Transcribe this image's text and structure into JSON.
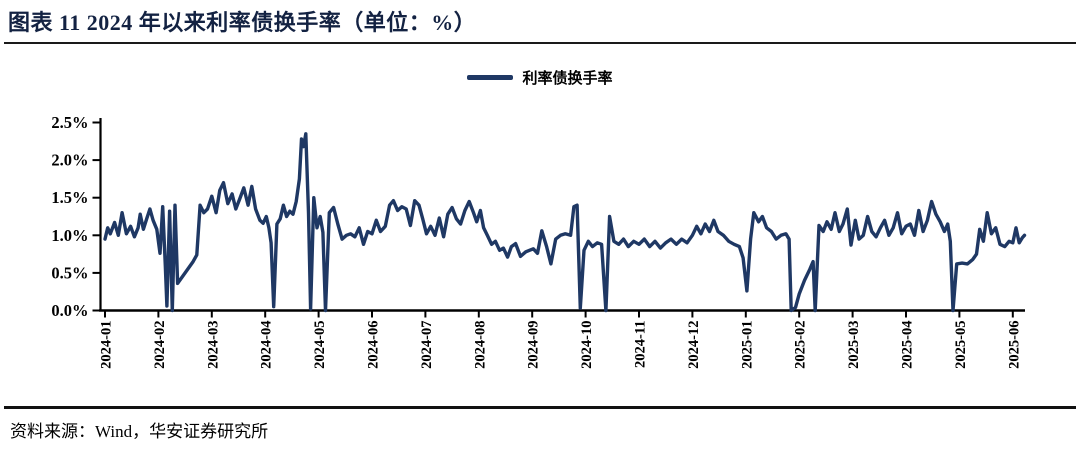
{
  "header": {
    "title": "图表 11 2024 年以来利率债换手率（单位：%）"
  },
  "footer": {
    "source": "资料来源：Wind，华安证券研究所"
  },
  "colors": {
    "line": "#1f3864",
    "axis": "#000000",
    "title": "#132242"
  },
  "chart_data": {
    "type": "line",
    "title": "2024 年以来利率债换手率（单位：%）",
    "xlabel": "",
    "ylabel": "",
    "legend_position": "top-center",
    "grid": false,
    "ylim": [
      0,
      2.5
    ],
    "y_tick_values": [
      0,
      0.5,
      1.0,
      1.5,
      2.0,
      2.5
    ],
    "y_tick_labels": [
      "0.0%",
      "0.5%",
      "1.0%",
      "1.5%",
      "2.0%",
      "2.5%"
    ],
    "x_categories": [
      "2024-01",
      "2024-02",
      "2024-03",
      "2024-04",
      "2024-05",
      "2024-06",
      "2024-07",
      "2024-08",
      "2024-09",
      "2024-10",
      "2024-11",
      "2024-12",
      "2025-01",
      "2025-02",
      "2025-03",
      "2025-04",
      "2025-05",
      "2025-06"
    ],
    "x_unit": "month_offset_from_2024_01",
    "series": [
      {
        "name": "利率债换手率",
        "color": "#1f3864",
        "points": [
          [
            0.0,
            0.95
          ],
          [
            0.05,
            1.1
          ],
          [
            0.1,
            1.02
          ],
          [
            0.18,
            1.17
          ],
          [
            0.25,
            1.0
          ],
          [
            0.32,
            1.3
          ],
          [
            0.4,
            1.02
          ],
          [
            0.48,
            1.12
          ],
          [
            0.55,
            0.98
          ],
          [
            0.62,
            1.1
          ],
          [
            0.66,
            1.28
          ],
          [
            0.72,
            1.08
          ],
          [
            0.78,
            1.22
          ],
          [
            0.84,
            1.35
          ],
          [
            0.9,
            1.2
          ],
          [
            0.97,
            1.08
          ],
          [
            1.03,
            0.76
          ],
          [
            1.08,
            1.38
          ],
          [
            1.13,
            0.6
          ],
          [
            1.16,
            0.06
          ],
          [
            1.21,
            1.32
          ],
          [
            1.26,
            0.0
          ],
          [
            1.31,
            1.4
          ],
          [
            1.36,
            0.36
          ],
          [
            1.5,
            0.5
          ],
          [
            1.65,
            0.65
          ],
          [
            1.72,
            0.74
          ],
          [
            1.78,
            1.4
          ],
          [
            1.85,
            1.3
          ],
          [
            1.92,
            1.35
          ],
          [
            2.0,
            1.52
          ],
          [
            2.08,
            1.3
          ],
          [
            2.15,
            1.6
          ],
          [
            2.22,
            1.7
          ],
          [
            2.3,
            1.42
          ],
          [
            2.38,
            1.55
          ],
          [
            2.45,
            1.35
          ],
          [
            2.52,
            1.48
          ],
          [
            2.6,
            1.63
          ],
          [
            2.68,
            1.4
          ],
          [
            2.75,
            1.65
          ],
          [
            2.82,
            1.35
          ],
          [
            2.9,
            1.2
          ],
          [
            2.96,
            1.16
          ],
          [
            3.02,
            1.25
          ],
          [
            3.07,
            1.1
          ],
          [
            3.11,
            0.9
          ],
          [
            3.16,
            0.05
          ],
          [
            3.22,
            1.15
          ],
          [
            3.28,
            1.22
          ],
          [
            3.34,
            1.4
          ],
          [
            3.4,
            1.25
          ],
          [
            3.46,
            1.32
          ],
          [
            3.52,
            1.28
          ],
          [
            3.58,
            1.45
          ],
          [
            3.64,
            1.75
          ],
          [
            3.68,
            2.28
          ],
          [
            3.72,
            2.18
          ],
          [
            3.76,
            2.35
          ],
          [
            3.81,
            1.3
          ],
          [
            3.85,
            0.02
          ],
          [
            3.91,
            1.5
          ],
          [
            3.97,
            1.1
          ],
          [
            4.03,
            1.25
          ],
          [
            4.08,
            1.04
          ],
          [
            4.13,
            0.0
          ],
          [
            4.2,
            1.3
          ],
          [
            4.28,
            1.37
          ],
          [
            4.36,
            1.15
          ],
          [
            4.44,
            0.95
          ],
          [
            4.52,
            1.0
          ],
          [
            4.6,
            1.02
          ],
          [
            4.68,
            0.98
          ],
          [
            4.76,
            1.1
          ],
          [
            4.84,
            0.88
          ],
          [
            4.92,
            1.05
          ],
          [
            5.0,
            1.02
          ],
          [
            5.08,
            1.2
          ],
          [
            5.16,
            1.05
          ],
          [
            5.25,
            1.12
          ],
          [
            5.33,
            1.4
          ],
          [
            5.4,
            1.46
          ],
          [
            5.48,
            1.33
          ],
          [
            5.56,
            1.38
          ],
          [
            5.64,
            1.35
          ],
          [
            5.72,
            1.13
          ],
          [
            5.8,
            1.46
          ],
          [
            5.88,
            1.4
          ],
          [
            5.95,
            1.22
          ],
          [
            6.02,
            1.02
          ],
          [
            6.1,
            1.12
          ],
          [
            6.18,
            1.0
          ],
          [
            6.26,
            1.23
          ],
          [
            6.34,
            0.98
          ],
          [
            6.42,
            1.28
          ],
          [
            6.5,
            1.37
          ],
          [
            6.58,
            1.22
          ],
          [
            6.66,
            1.15
          ],
          [
            6.74,
            1.33
          ],
          [
            6.82,
            1.45
          ],
          [
            6.9,
            1.3
          ],
          [
            6.96,
            1.18
          ],
          [
            7.03,
            1.33
          ],
          [
            7.09,
            1.1
          ],
          [
            7.16,
            1.0
          ],
          [
            7.24,
            0.88
          ],
          [
            7.31,
            0.92
          ],
          [
            7.39,
            0.8
          ],
          [
            7.46,
            0.83
          ],
          [
            7.54,
            0.71
          ],
          [
            7.61,
            0.85
          ],
          [
            7.69,
            0.89
          ],
          [
            7.78,
            0.72
          ],
          [
            7.88,
            0.78
          ],
          [
            7.95,
            0.8
          ],
          [
            8.02,
            0.82
          ],
          [
            8.1,
            0.76
          ],
          [
            8.18,
            1.06
          ],
          [
            8.27,
            0.85
          ],
          [
            8.35,
            0.62
          ],
          [
            8.44,
            0.95
          ],
          [
            8.53,
            1.0
          ],
          [
            8.62,
            1.02
          ],
          [
            8.72,
            1.0
          ],
          [
            8.78,
            1.38
          ],
          [
            8.84,
            1.4
          ],
          [
            8.9,
            0.03
          ],
          [
            8.97,
            0.8
          ],
          [
            9.05,
            0.92
          ],
          [
            9.13,
            0.85
          ],
          [
            9.22,
            0.9
          ],
          [
            9.3,
            0.88
          ],
          [
            9.38,
            0.0
          ],
          [
            9.45,
            1.25
          ],
          [
            9.53,
            0.92
          ],
          [
            9.62,
            0.88
          ],
          [
            9.71,
            0.95
          ],
          [
            9.8,
            0.85
          ],
          [
            9.9,
            0.92
          ],
          [
            10.0,
            0.88
          ],
          [
            10.1,
            0.95
          ],
          [
            10.2,
            0.85
          ],
          [
            10.3,
            0.92
          ],
          [
            10.4,
            0.83
          ],
          [
            10.5,
            0.9
          ],
          [
            10.6,
            0.95
          ],
          [
            10.7,
            0.88
          ],
          [
            10.8,
            0.95
          ],
          [
            10.9,
            0.9
          ],
          [
            11.0,
            1.0
          ],
          [
            11.08,
            1.12
          ],
          [
            11.16,
            1.02
          ],
          [
            11.24,
            1.15
          ],
          [
            11.32,
            1.05
          ],
          [
            11.4,
            1.2
          ],
          [
            11.48,
            1.05
          ],
          [
            11.58,
            1.0
          ],
          [
            11.68,
            0.92
          ],
          [
            11.78,
            0.88
          ],
          [
            11.88,
            0.85
          ],
          [
            11.95,
            0.7
          ],
          [
            12.02,
            0.26
          ],
          [
            12.09,
            0.95
          ],
          [
            12.15,
            1.3
          ],
          [
            12.24,
            1.18
          ],
          [
            12.31,
            1.25
          ],
          [
            12.39,
            1.1
          ],
          [
            12.48,
            1.05
          ],
          [
            12.57,
            0.95
          ],
          [
            12.66,
            1.0
          ],
          [
            12.75,
            1.02
          ],
          [
            12.81,
            0.95
          ],
          [
            12.85,
            0.0
          ],
          [
            12.93,
            0.04
          ],
          [
            13.0,
            0.22
          ],
          [
            13.1,
            0.4
          ],
          [
            13.2,
            0.55
          ],
          [
            13.26,
            0.65
          ],
          [
            13.3,
            0.0
          ],
          [
            13.37,
            1.13
          ],
          [
            13.45,
            1.05
          ],
          [
            13.52,
            1.18
          ],
          [
            13.6,
            1.08
          ],
          [
            13.67,
            1.3
          ],
          [
            13.75,
            1.05
          ],
          [
            13.82,
            1.15
          ],
          [
            13.9,
            1.35
          ],
          [
            13.97,
            0.87
          ],
          [
            14.05,
            1.2
          ],
          [
            14.12,
            0.95
          ],
          [
            14.2,
            1.0
          ],
          [
            14.28,
            1.25
          ],
          [
            14.36,
            1.05
          ],
          [
            14.44,
            0.98
          ],
          [
            14.52,
            1.1
          ],
          [
            14.6,
            1.2
          ],
          [
            14.68,
            1.0
          ],
          [
            14.76,
            1.1
          ],
          [
            14.84,
            1.3
          ],
          [
            14.92,
            1.02
          ],
          [
            15.0,
            1.12
          ],
          [
            15.08,
            1.15
          ],
          [
            15.16,
            1.0
          ],
          [
            15.24,
            1.33
          ],
          [
            15.32,
            1.05
          ],
          [
            15.4,
            1.2
          ],
          [
            15.48,
            1.45
          ],
          [
            15.56,
            1.28
          ],
          [
            15.64,
            1.18
          ],
          [
            15.72,
            1.05
          ],
          [
            15.78,
            1.15
          ],
          [
            15.83,
            0.92
          ],
          [
            15.88,
            0.0
          ],
          [
            15.95,
            0.62
          ],
          [
            16.05,
            0.63
          ],
          [
            16.15,
            0.62
          ],
          [
            16.25,
            0.68
          ],
          [
            16.32,
            0.75
          ],
          [
            16.38,
            1.08
          ],
          [
            16.45,
            0.92
          ],
          [
            16.52,
            1.3
          ],
          [
            16.6,
            1.02
          ],
          [
            16.68,
            1.1
          ],
          [
            16.76,
            0.88
          ],
          [
            16.85,
            0.85
          ],
          [
            16.93,
            0.92
          ],
          [
            17.0,
            0.9
          ],
          [
            17.06,
            1.1
          ],
          [
            17.12,
            0.9
          ],
          [
            17.18,
            0.97
          ],
          [
            17.22,
            1.0
          ]
        ]
      }
    ]
  }
}
